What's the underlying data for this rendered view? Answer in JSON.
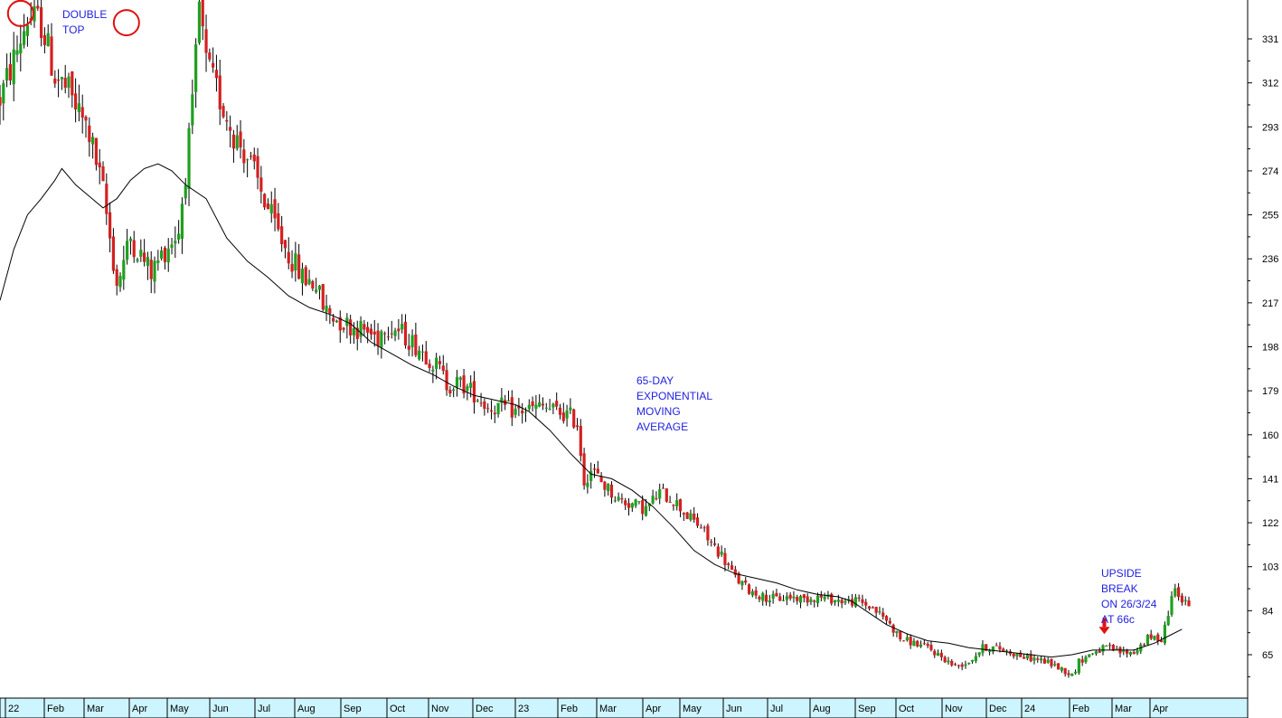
{
  "chart_data": {
    "type": "candlestick",
    "title": "",
    "xlabel": "",
    "ylabel": "",
    "ylim": [
      46,
      350
    ],
    "yticks": [
      331,
      312,
      293,
      274,
      255,
      236,
      217,
      198,
      179,
      160,
      141,
      122,
      103,
      84,
      65
    ],
    "xticks": [
      "22",
      "Feb",
      "Mar",
      "Apr",
      "May",
      "Jun",
      "Jul",
      "Aug",
      "Sep",
      "Oct",
      "Nov",
      "Dec",
      "23",
      "Feb",
      "Mar",
      "Apr",
      "May",
      "Jun",
      "Jul",
      "Aug",
      "Sep",
      "Oct",
      "Nov",
      "Dec",
      "24",
      "Feb",
      "Mar",
      "Apr"
    ],
    "up_color": "#1fa01f",
    "down_color": "#d42020",
    "ma_color": "#000000",
    "axis_band_color": "#cdf5ff",
    "annotation_color": "#1f1fe0",
    "marker_color": "#e01010",
    "price_path": [
      [
        0,
        305
      ],
      [
        2,
        322
      ],
      [
        4,
        340
      ],
      [
        6,
        338
      ],
      [
        8,
        315
      ],
      [
        10,
        308
      ],
      [
        13,
        290
      ],
      [
        15,
        265
      ],
      [
        17,
        225
      ],
      [
        19,
        245
      ],
      [
        21,
        235
      ],
      [
        22,
        230
      ],
      [
        24,
        240
      ],
      [
        26,
        248
      ],
      [
        28,
        300
      ],
      [
        29,
        345
      ],
      [
        30,
        320
      ],
      [
        32,
        305
      ],
      [
        34,
        290
      ],
      [
        36,
        280
      ],
      [
        38,
        265
      ],
      [
        40,
        250
      ],
      [
        42,
        238
      ],
      [
        44,
        228
      ],
      [
        46,
        225
      ],
      [
        47,
        215
      ],
      [
        49,
        210
      ],
      [
        51,
        207
      ],
      [
        53,
        205
      ],
      [
        55,
        202
      ],
      [
        56,
        208
      ],
      [
        58,
        205
      ],
      [
        60,
        200
      ],
      [
        62,
        195
      ],
      [
        64,
        188
      ],
      [
        65,
        182
      ],
      [
        67,
        182
      ],
      [
        69,
        178
      ],
      [
        71,
        172
      ],
      [
        73,
        172
      ],
      [
        75,
        170
      ],
      [
        77,
        171
      ],
      [
        79,
        172
      ],
      [
        81,
        170
      ],
      [
        83,
        168
      ],
      [
        84,
        165
      ],
      [
        85,
        140
      ],
      [
        86,
        145
      ],
      [
        88,
        138
      ],
      [
        90,
        132
      ],
      [
        92,
        130
      ],
      [
        94,
        128
      ],
      [
        96,
        135
      ],
      [
        98,
        132
      ],
      [
        100,
        125
      ],
      [
        102,
        120
      ],
      [
        103,
        115
      ],
      [
        105,
        108
      ],
      [
        107,
        98
      ],
      [
        109,
        93
      ],
      [
        111,
        90
      ],
      [
        113,
        89
      ],
      [
        115,
        90
      ],
      [
        117,
        89
      ],
      [
        119,
        90
      ],
      [
        121,
        89
      ],
      [
        123,
        88
      ],
      [
        125,
        88
      ],
      [
        127,
        85
      ],
      [
        129,
        80
      ],
      [
        131,
        72
      ],
      [
        133,
        70
      ],
      [
        135,
        68
      ],
      [
        137,
        64
      ],
      [
        139,
        60
      ],
      [
        141,
        62
      ],
      [
        143,
        68
      ],
      [
        145,
        68
      ],
      [
        147,
        66
      ],
      [
        149,
        64
      ],
      [
        151,
        63
      ],
      [
        153,
        61
      ],
      [
        155,
        58
      ],
      [
        156,
        56
      ],
      [
        157,
        62
      ],
      [
        159,
        66
      ],
      [
        161,
        68
      ],
      [
        163,
        66
      ],
      [
        165,
        66
      ],
      [
        167,
        72
      ],
      [
        169,
        72
      ],
      [
        170,
        83
      ],
      [
        171,
        96
      ],
      [
        172,
        88
      ],
      [
        173,
        86
      ]
    ],
    "ema_65": [
      [
        0,
        218
      ],
      [
        2,
        240
      ],
      [
        4,
        255
      ],
      [
        6,
        262
      ],
      [
        8,
        270
      ],
      [
        9,
        275
      ],
      [
        11,
        268
      ],
      [
        13,
        263
      ],
      [
        15,
        258
      ],
      [
        17,
        262
      ],
      [
        19,
        270
      ],
      [
        21,
        275
      ],
      [
        23,
        277
      ],
      [
        25,
        274
      ],
      [
        27,
        268
      ],
      [
        30,
        262
      ],
      [
        33,
        245
      ],
      [
        36,
        235
      ],
      [
        39,
        228
      ],
      [
        42,
        220
      ],
      [
        45,
        215
      ],
      [
        48,
        212
      ],
      [
        51,
        208
      ],
      [
        54,
        200
      ],
      [
        57,
        195
      ],
      [
        60,
        190
      ],
      [
        63,
        186
      ],
      [
        66,
        181
      ],
      [
        69,
        177
      ],
      [
        72,
        175
      ],
      [
        75,
        173
      ],
      [
        77,
        170
      ],
      [
        80,
        162
      ],
      [
        83,
        152
      ],
      [
        86,
        143
      ],
      [
        89,
        141
      ],
      [
        92,
        136
      ],
      [
        95,
        129
      ],
      [
        98,
        120
      ],
      [
        101,
        110
      ],
      [
        104,
        104
      ],
      [
        107,
        100
      ],
      [
        110,
        98
      ],
      [
        113,
        96
      ],
      [
        116,
        93
      ],
      [
        119,
        91
      ],
      [
        122,
        90
      ],
      [
        124,
        88
      ],
      [
        126,
        84
      ],
      [
        129,
        78
      ],
      [
        132,
        74
      ],
      [
        135,
        71
      ],
      [
        138,
        70
      ],
      [
        141,
        68
      ],
      [
        144,
        67
      ],
      [
        147,
        66
      ],
      [
        150,
        65
      ],
      [
        153,
        64
      ],
      [
        156,
        65
      ],
      [
        159,
        67
      ],
      [
        162,
        67
      ],
      [
        165,
        67
      ],
      [
        168,
        70
      ],
      [
        170,
        73
      ],
      [
        172,
        76
      ]
    ],
    "double_top_markers": [
      {
        "x": 3,
        "y": 342
      },
      {
        "x": 18.4,
        "y": 338
      }
    ],
    "breakout_marker": {
      "x": 160.7,
      "y": 70
    }
  },
  "annotations": {
    "double_top": "DOUBLE\nTOP",
    "ema": "65-DAY\nEXPONENTIAL\nMOVING\nAVERAGE",
    "upside_break": "UPSIDE\nBREAK\nON 26/3/24\nAT 66c"
  }
}
